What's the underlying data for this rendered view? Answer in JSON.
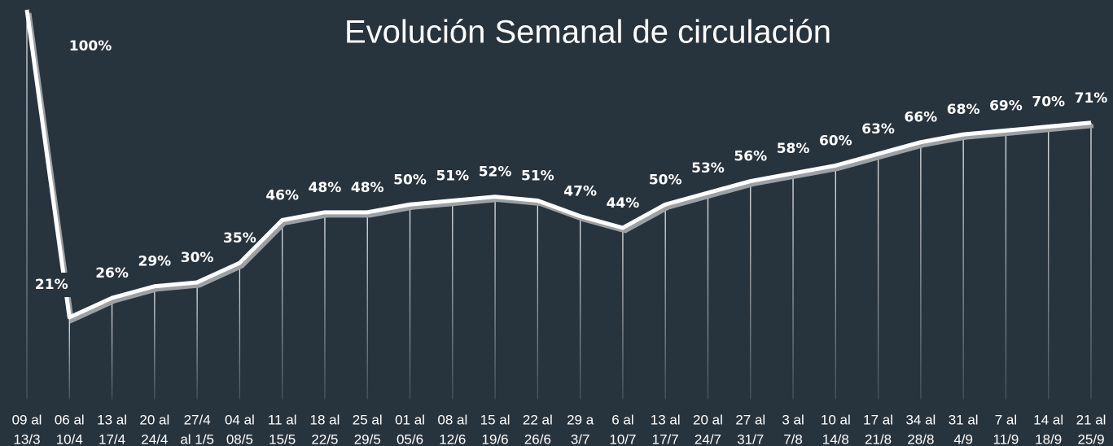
{
  "chart_data": {
    "type": "line",
    "title": "Evolución Semanal de circulación",
    "categories": [
      [
        "09 al",
        "13/3"
      ],
      [
        "06 al",
        "10/4"
      ],
      [
        "13 al",
        "17/4"
      ],
      [
        "20 al",
        "24/4"
      ],
      [
        "27/4",
        "al 1/5"
      ],
      [
        "04 al",
        "08/5"
      ],
      [
        "11 al",
        "15/5"
      ],
      [
        "18 al",
        "22/5"
      ],
      [
        "25 al",
        "29/5"
      ],
      [
        "01 al",
        "05/6"
      ],
      [
        "08 al",
        "12/6"
      ],
      [
        "15 al",
        "19/6"
      ],
      [
        "22 al",
        "26/6"
      ],
      [
        "29 a",
        "3/7"
      ],
      [
        "6 al",
        "10/7"
      ],
      [
        "13 al",
        "17/7"
      ],
      [
        "20 al",
        "24/7"
      ],
      [
        "27 al",
        "31/7"
      ],
      [
        "3 al",
        "7/8"
      ],
      [
        "10 al",
        "14/8"
      ],
      [
        "17 al",
        "21/8"
      ],
      [
        "34 al",
        "28/8"
      ],
      [
        "31 al",
        "4/9"
      ],
      [
        "7 al",
        "11/9"
      ],
      [
        "14 al",
        "18/9"
      ],
      [
        "21 al",
        "25/9"
      ]
    ],
    "values": [
      100,
      21,
      26,
      29,
      30,
      35,
      46,
      48,
      48,
      50,
      51,
      52,
      51,
      47,
      44,
      50,
      53,
      56,
      58,
      60,
      63,
      66,
      68,
      69,
      70,
      71
    ],
    "value_labels": [
      "100%",
      "21%",
      "26%",
      "29%",
      "30%",
      "35%",
      "46%",
      "48%",
      "48%",
      "50%",
      "51%",
      "52%",
      "51%",
      "47%",
      "44%",
      "50%",
      "53%",
      "56%",
      "58%",
      "60%",
      "63%",
      "66%",
      "68%",
      "69%",
      "70%",
      "71%"
    ],
    "color": "#ffffff",
    "ylim": [
      0,
      100
    ]
  }
}
